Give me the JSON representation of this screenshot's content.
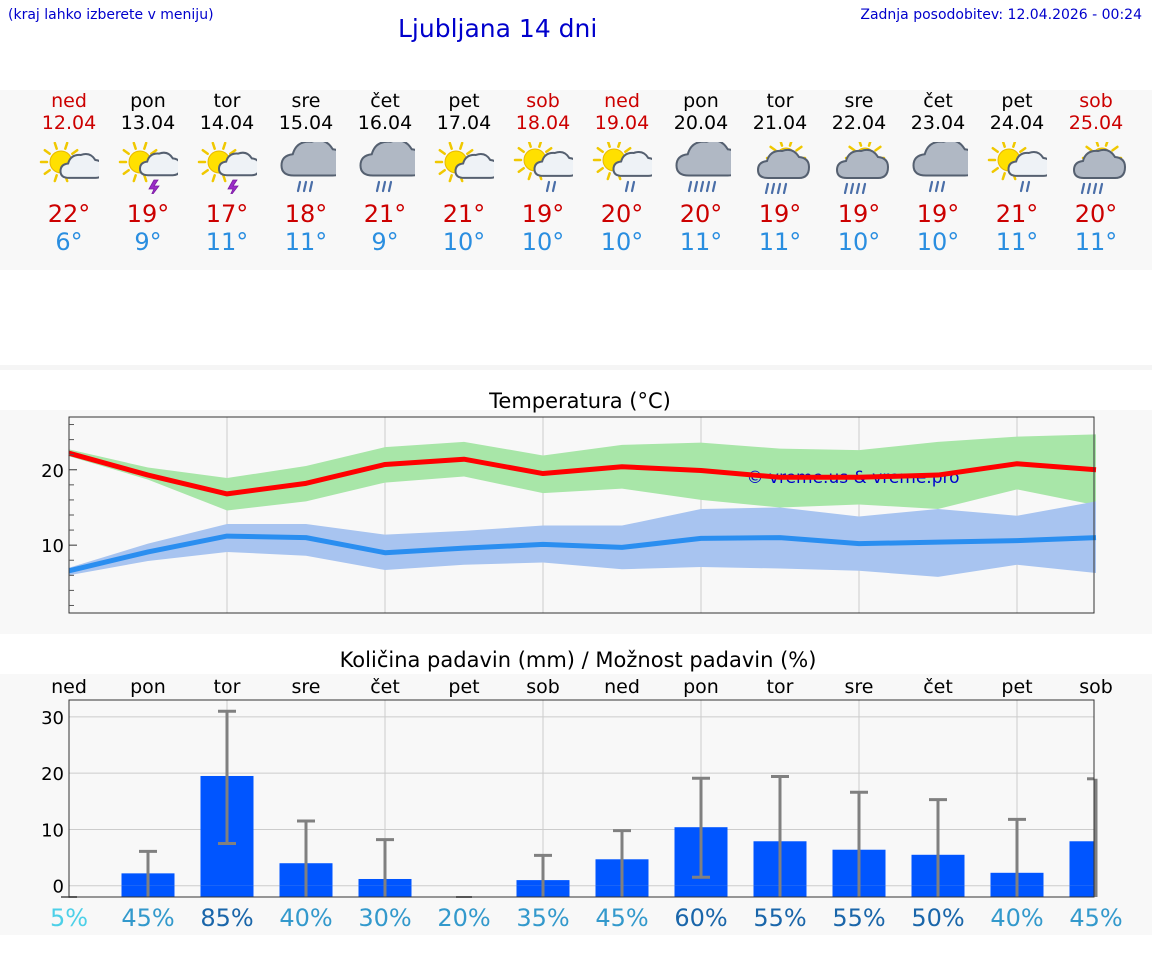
{
  "header": {
    "hint": "(kraj lahko izberete v meniju)",
    "title": "Ljubljana 14 dni",
    "updated": "Zadnja posodobitev: 12.04.2026 - 00:24"
  },
  "colors": {
    "max_line": "#ff0000",
    "max_band": "#a8e6a8",
    "min_line": "#2a8ef0",
    "min_band": "#a8c4f0",
    "bar": "#0055ff",
    "accent": "#0000cc"
  },
  "days": [
    {
      "name": "ned",
      "date": "12.04",
      "icon": "sun-cloud-icon",
      "tmax": "22°",
      "tmin": "6°",
      "weekend": true
    },
    {
      "name": "pon",
      "date": "13.04",
      "icon": "sun-storm-icon",
      "tmax": "19°",
      "tmin": "9°",
      "weekend": false
    },
    {
      "name": "tor",
      "date": "14.04",
      "icon": "sun-storm-icon",
      "tmax": "17°",
      "tmin": "11°",
      "weekend": false
    },
    {
      "name": "sre",
      "date": "15.04",
      "icon": "cloud-rain-icon",
      "tmax": "18°",
      "tmin": "11°",
      "weekend": false
    },
    {
      "name": "čet",
      "date": "16.04",
      "icon": "cloud-rain-icon",
      "tmax": "21°",
      "tmin": "9°",
      "weekend": false
    },
    {
      "name": "pet",
      "date": "17.04",
      "icon": "sun-cloud-icon",
      "tmax": "21°",
      "tmin": "10°",
      "weekend": false
    },
    {
      "name": "sob",
      "date": "18.04",
      "icon": "sun-cloud-rain-icon",
      "tmax": "19°",
      "tmin": "10°",
      "weekend": true
    },
    {
      "name": "ned",
      "date": "19.04",
      "icon": "sun-cloud-rain-icon",
      "tmax": "20°",
      "tmin": "10°",
      "weekend": true
    },
    {
      "name": "pon",
      "date": "20.04",
      "icon": "cloud-heavy-rain-icon",
      "tmax": "20°",
      "tmin": "11°",
      "weekend": false
    },
    {
      "name": "tor",
      "date": "21.04",
      "icon": "sun-heavy-rain-icon",
      "tmax": "19°",
      "tmin": "11°",
      "weekend": false
    },
    {
      "name": "sre",
      "date": "22.04",
      "icon": "sun-heavy-rain-icon",
      "tmax": "19°",
      "tmin": "10°",
      "weekend": false
    },
    {
      "name": "čet",
      "date": "23.04",
      "icon": "cloud-rain-icon",
      "tmax": "19°",
      "tmin": "10°",
      "weekend": false
    },
    {
      "name": "pet",
      "date": "24.04",
      "icon": "sun-cloud-rain-icon",
      "tmax": "21°",
      "tmin": "11°",
      "weekend": false
    },
    {
      "name": "sob",
      "date": "25.04",
      "icon": "sun-heavy-rain-icon",
      "tmax": "20°",
      "tmin": "11°",
      "weekend": true
    }
  ],
  "chart_data": [
    {
      "type": "line",
      "title": "Temperatura (°C)",
      "watermark": "© vreme.us & vreme.pro",
      "ylim": [
        1,
        27
      ],
      "yticks": [
        10,
        20
      ],
      "grid": true,
      "x": [
        0,
        1,
        2,
        3,
        4,
        5,
        6,
        7,
        8,
        9,
        10,
        11,
        12,
        13
      ],
      "series": [
        {
          "key": "max",
          "values": [
            22.2,
            19.3,
            16.8,
            18.2,
            20.7,
            21.4,
            19.5,
            20.4,
            19.9,
            19.0,
            19.0,
            19.3,
            20.8,
            20.0
          ],
          "upper": [
            22.7,
            20.3,
            18.9,
            20.5,
            23.0,
            23.7,
            21.9,
            23.3,
            23.6,
            22.8,
            22.6,
            23.7,
            24.4,
            24.7
          ],
          "lower": [
            21.8,
            18.7,
            14.6,
            15.8,
            18.3,
            19.1,
            16.9,
            17.5,
            16.0,
            15.0,
            15.4,
            14.8,
            17.4,
            15.3
          ]
        },
        {
          "key": "min",
          "values": [
            6.6,
            9.1,
            11.2,
            11.0,
            9.0,
            9.6,
            10.1,
            9.7,
            10.9,
            11.0,
            10.2,
            10.4,
            10.6,
            11.0
          ],
          "upper": [
            7.0,
            10.2,
            12.8,
            12.8,
            11.4,
            11.9,
            12.6,
            12.6,
            14.8,
            15.0,
            13.8,
            14.8,
            13.9,
            15.8
          ],
          "lower": [
            6.0,
            7.9,
            9.1,
            8.6,
            6.7,
            7.4,
            7.7,
            6.8,
            7.1,
            6.9,
            6.6,
            5.8,
            7.4,
            6.3
          ]
        }
      ]
    },
    {
      "type": "bar",
      "title": "Količina padavin (mm) / Možnost padavin (%)",
      "categories": [
        "ned",
        "pon",
        "tor",
        "sre",
        "čet",
        "pet",
        "sob",
        "ned",
        "pon",
        "tor",
        "sre",
        "čet",
        "pet",
        "sob"
      ],
      "values": [
        0,
        2.2,
        19.5,
        4.0,
        1.2,
        0,
        1.0,
        4.7,
        10.4,
        7.9,
        6.4,
        5.5,
        2.3,
        7.9
      ],
      "err_low": [
        0,
        0,
        7.5,
        0,
        0,
        0,
        0,
        0,
        1.5,
        0,
        0,
        0,
        0,
        0
      ],
      "err_high": [
        0,
        6.1,
        31.0,
        11.5,
        8.2,
        0,
        5.4,
        9.8,
        19.1,
        19.4,
        16.6,
        15.3,
        11.8,
        19.0
      ],
      "probability": [
        "5%",
        "45%",
        "85%",
        "40%",
        "30%",
        "20%",
        "35%",
        "45%",
        "60%",
        "55%",
        "55%",
        "50%",
        "40%",
        "45%"
      ],
      "prob_values": [
        5,
        45,
        85,
        40,
        30,
        20,
        35,
        45,
        60,
        55,
        55,
        50,
        40,
        45
      ],
      "ylim": [
        -2,
        33
      ],
      "yticks": [
        0,
        10,
        20,
        30
      ],
      "grid": true
    }
  ]
}
